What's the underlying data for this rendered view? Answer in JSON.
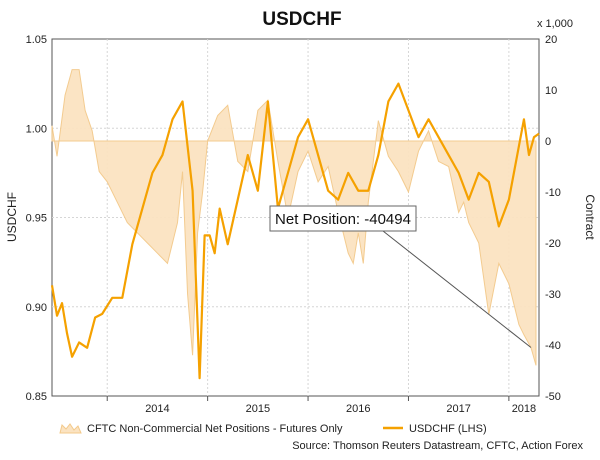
{
  "chart_data": {
    "type": "line",
    "title": "USDCHF",
    "left_axis": {
      "label": "USDCHF",
      "range": [
        0.85,
        1.05
      ],
      "ticks": [
        "0.85",
        "0.90",
        "0.95",
        "1.00",
        "1.05"
      ],
      "tick_values": [
        0.85,
        0.9,
        0.95,
        1.0,
        1.05
      ]
    },
    "right_axis": {
      "label": "Contract",
      "unit_label": "x 1,000",
      "range": [
        -50,
        20
      ],
      "ticks": [
        "-50",
        "-40",
        "-30",
        "-20",
        "-10",
        "0",
        "10",
        "20"
      ],
      "tick_values": [
        -50,
        -40,
        -30,
        -20,
        -10,
        0,
        10,
        20
      ]
    },
    "x_axis": {
      "range": [
        2013.45,
        2018.3
      ],
      "tick_labels": [
        "2014",
        "2015",
        "2016",
        "2017",
        "2018"
      ],
      "tick_positions": [
        2014.0,
        2015.0,
        2016.0,
        2017.0,
        2018.0
      ],
      "label_positions": [
        2014.5,
        2015.5,
        2016.5,
        2017.5,
        2018.15
      ]
    },
    "grid": true,
    "legend_position": "bottom",
    "annotation": {
      "text": "Net Position: -40494",
      "x": 2018.22,
      "value": -40.494
    },
    "source": "Source: Thomson Reuters Datastream, CFTC, Action Forex",
    "series": [
      {
        "name": "CFTC Non-Commercial Net Positions - Futures Only",
        "kind": "area",
        "axis": "right",
        "color": "#f3c98a",
        "fill": "#fbe3c1",
        "x": [
          2013.45,
          2013.5,
          2013.58,
          2013.65,
          2013.72,
          2013.78,
          2013.85,
          2013.92,
          2014.0,
          2014.1,
          2014.2,
          2014.3,
          2014.4,
          2014.5,
          2014.6,
          2014.7,
          2014.75,
          2014.8,
          2014.85,
          2014.9,
          2014.95,
          2015.0,
          2015.1,
          2015.2,
          2015.3,
          2015.4,
          2015.5,
          2015.6,
          2015.7,
          2015.8,
          2015.9,
          2016.0,
          2016.1,
          2016.2,
          2016.3,
          2016.4,
          2016.45,
          2016.5,
          2016.55,
          2016.6,
          2016.7,
          2016.8,
          2016.9,
          2017.0,
          2017.1,
          2017.2,
          2017.3,
          2017.4,
          2017.5,
          2017.55,
          2017.6,
          2017.7,
          2017.8,
          2017.9,
          2018.0,
          2018.05,
          2018.1,
          2018.15,
          2018.22,
          2018.27
        ],
        "values": [
          3,
          -3,
          9,
          14,
          14,
          6,
          2,
          -6,
          -8,
          -12,
          -16,
          -18,
          -20,
          -22,
          -24,
          -16,
          -6,
          -30,
          -42,
          -18,
          -10,
          0,
          5,
          7,
          -4,
          -6,
          6,
          8,
          -4,
          -15,
          -6,
          -2,
          -8,
          -5,
          -14,
          -22,
          -24,
          -18,
          -24,
          -12,
          4,
          -3,
          -6,
          -10,
          -2,
          2,
          -4,
          -5,
          -14,
          -12,
          -16,
          -20,
          -34,
          -24,
          -28,
          -32,
          -36,
          -38,
          -40.5,
          -44
        ]
      },
      {
        "name": "USDCHF (LHS)",
        "kind": "line",
        "axis": "left",
        "color": "#f5a100",
        "x": [
          2013.45,
          2013.5,
          2013.55,
          2013.6,
          2013.65,
          2013.72,
          2013.8,
          2013.88,
          2013.95,
          2014.05,
          2014.15,
          2014.25,
          2014.35,
          2014.45,
          2014.55,
          2014.65,
          2014.75,
          2014.85,
          2014.92,
          2014.97,
          2015.02,
          2015.07,
          2015.12,
          2015.2,
          2015.3,
          2015.4,
          2015.5,
          2015.6,
          2015.7,
          2015.8,
          2015.9,
          2016.0,
          2016.1,
          2016.2,
          2016.3,
          2016.4,
          2016.5,
          2016.6,
          2016.7,
          2016.8,
          2016.9,
          2017.0,
          2017.1,
          2017.2,
          2017.3,
          2017.4,
          2017.5,
          2017.6,
          2017.7,
          2017.8,
          2017.9,
          2018.0,
          2018.05,
          2018.1,
          2018.15,
          2018.2,
          2018.25,
          2018.3
        ],
        "values": [
          0.912,
          0.895,
          0.902,
          0.885,
          0.872,
          0.88,
          0.877,
          0.894,
          0.896,
          0.905,
          0.905,
          0.935,
          0.955,
          0.975,
          0.985,
          1.005,
          1.015,
          0.965,
          0.86,
          0.94,
          0.94,
          0.93,
          0.955,
          0.935,
          0.96,
          0.985,
          0.965,
          1.015,
          0.955,
          0.975,
          0.995,
          1.005,
          0.985,
          0.965,
          0.96,
          0.975,
          0.965,
          0.965,
          0.985,
          1.015,
          1.025,
          1.01,
          0.995,
          1.005,
          0.995,
          0.985,
          0.975,
          0.96,
          0.975,
          0.97,
          0.945,
          0.96,
          0.975,
          0.99,
          1.005,
          0.985,
          0.995,
          0.997
        ]
      }
    ]
  }
}
